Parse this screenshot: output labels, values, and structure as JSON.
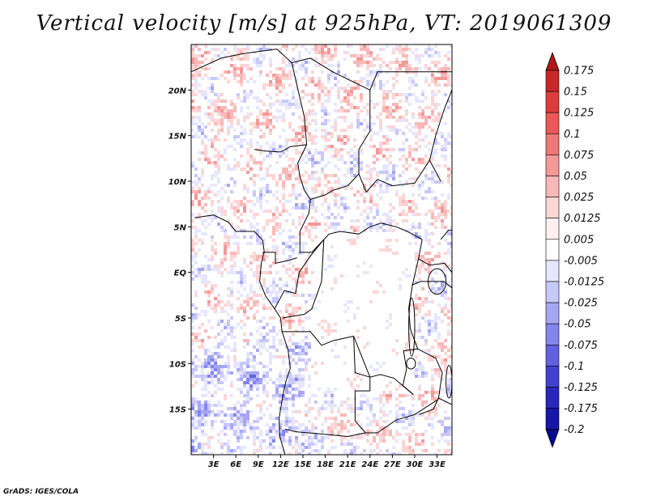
{
  "title": "Vertical velocity [m/s] at 925hPa, VT: 2019061309",
  "credit": "GrADS: IGES/COLA",
  "map": {
    "lon_range": [
      0,
      35
    ],
    "lat_range": [
      -20,
      25
    ],
    "lat_ticks": [
      "20N",
      "15N",
      "10N",
      "5N",
      "EQ",
      "5S",
      "10S",
      "15S"
    ],
    "lon_ticks": [
      "3E",
      "6E",
      "9E",
      "12E",
      "15E",
      "18E",
      "21E",
      "24E",
      "27E",
      "30E",
      "33E"
    ]
  },
  "colorbar": {
    "levels": [
      "0.175",
      "0.15",
      "0.125",
      "0.1",
      "0.075",
      "0.05",
      "0.025",
      "0.0125",
      "0.005",
      "-0.005",
      "-0.0125",
      "-0.025",
      "-0.05",
      "-0.075",
      "-0.1",
      "-0.125",
      "-0.175",
      "-0.2"
    ],
    "colors": [
      "#b01818",
      "#c82828",
      "#dd3c3c",
      "#ea5858",
      "#f07878",
      "#f59898",
      "#f9b8b8",
      "#fcd6d6",
      "#fff0f0",
      "#ffffff",
      "#e6e6ff",
      "#c8c8fa",
      "#a6a6f4",
      "#8484ec",
      "#6262e0",
      "#4242d0",
      "#2828bc",
      "#1616a8",
      "#0a0a90"
    ]
  }
}
